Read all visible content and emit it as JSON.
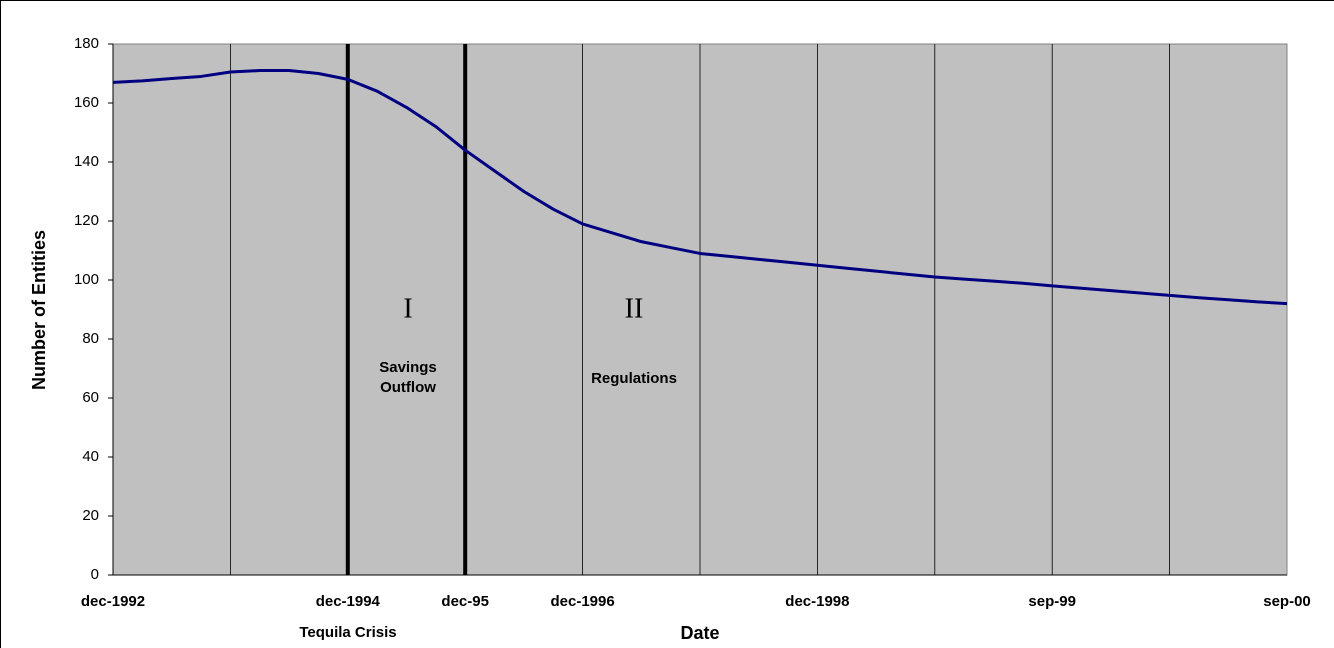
{
  "chart_data": {
    "type": "line",
    "x_label": "Date",
    "y_label": "Number of Entities",
    "categories": [
      "dec-1992",
      null,
      null,
      null,
      null,
      null,
      null,
      null,
      "dec-1994",
      null,
      null,
      null,
      "dec-95",
      null,
      null,
      null,
      "dec-1996",
      null,
      null,
      null,
      null,
      null,
      null,
      null,
      "dec-1998",
      null,
      null,
      null,
      null,
      null,
      null,
      null,
      "sep-99",
      null,
      null,
      null,
      null,
      null,
      null,
      null,
      "sep-00"
    ],
    "values": [
      167,
      167.5,
      168.3,
      169,
      170.5,
      171,
      171,
      170,
      168,
      164,
      158.5,
      152,
      144,
      137,
      130,
      124,
      119,
      116,
      113,
      111,
      109,
      108,
      107,
      106,
      105,
      104,
      103,
      102,
      101,
      100.3,
      99.6,
      98.9,
      98,
      97.2,
      96.4,
      95.6,
      94.8,
      94,
      93.3,
      92.6,
      92
    ],
    "color": "#000080",
    "plot_background": "#c0c0c0",
    "ylim": [
      0,
      180
    ],
    "yticks": [
      0,
      20,
      40,
      60,
      80,
      100,
      120,
      140,
      160,
      180
    ],
    "grid": true,
    "event_lines": [
      "dec-1994",
      "dec-95"
    ],
    "annotations": [
      {
        "text": "Tequila Crisis"
      },
      {
        "text": "I"
      },
      {
        "text": "Savings"
      },
      {
        "text": "Outflow"
      },
      {
        "text": "II"
      },
      {
        "text": "Regulations"
      }
    ]
  }
}
